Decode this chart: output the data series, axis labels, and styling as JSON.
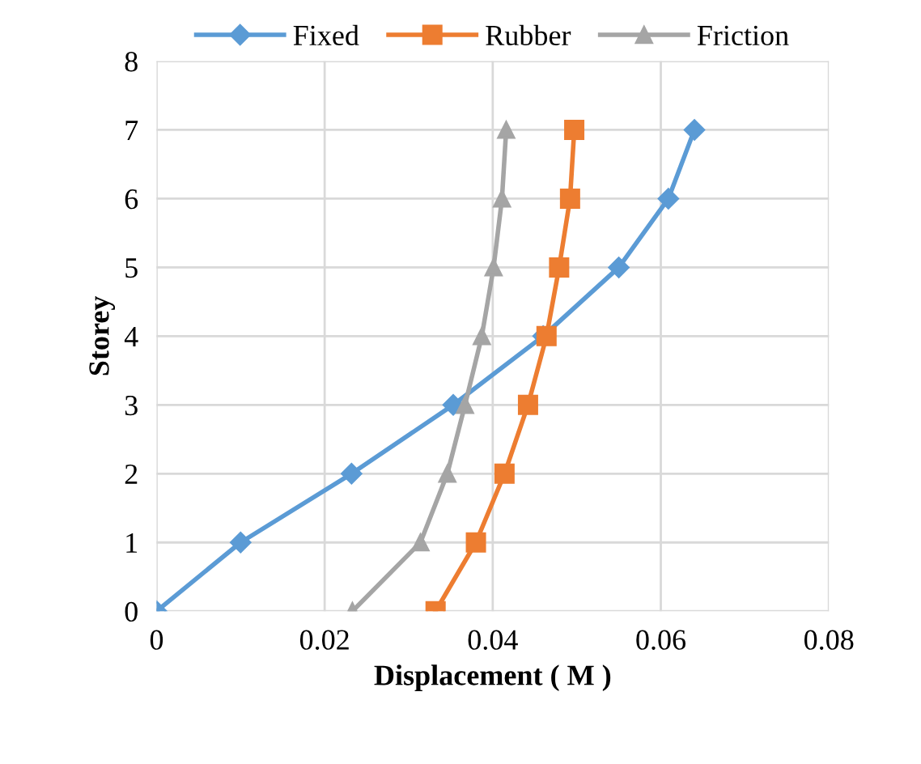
{
  "chart_data": {
    "type": "line",
    "xlabel": "Displacement ( M )",
    "ylabel": "Storey",
    "series": [
      {
        "name": "Fixed",
        "color": "#5b9bd5",
        "marker": "diamond",
        "x": [
          0,
          0.01,
          0.0232,
          0.0353,
          0.046,
          0.055,
          0.0609,
          0.064
        ],
        "values": [
          0,
          1,
          2,
          3,
          4,
          5,
          6,
          7
        ]
      },
      {
        "name": "Rubber",
        "color": "#ed7d31",
        "marker": "square",
        "x": [
          0.0332,
          0.038,
          0.0414,
          0.0442,
          0.0464,
          0.0479,
          0.0492,
          0.0497
        ],
        "values": [
          0,
          1,
          2,
          3,
          4,
          5,
          6,
          7
        ]
      },
      {
        "name": "Friction",
        "color": "#a5a5a5",
        "marker": "triangle",
        "x": [
          0.0233,
          0.0314,
          0.0346,
          0.0367,
          0.0387,
          0.0401,
          0.0411,
          0.0416
        ],
        "values": [
          0,
          1,
          2,
          3,
          4,
          5,
          6,
          7
        ]
      }
    ],
    "xlim": [
      0,
      0.08
    ],
    "xticks": [
      0,
      0.02,
      0.04,
      0.06,
      0.08
    ],
    "ylim": [
      0,
      8
    ],
    "yticks": [
      0,
      1,
      2,
      3,
      4,
      5,
      6,
      7,
      8
    ],
    "grid": true,
    "legend": "top",
    "line_style": "solid"
  }
}
